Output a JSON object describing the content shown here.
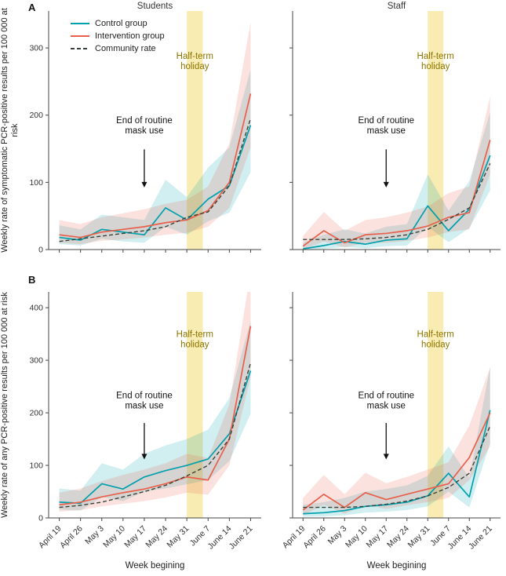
{
  "chart_data": {
    "type": "line",
    "categories": [
      "April 19",
      "April 26",
      "May 3",
      "May 10",
      "May 17",
      "May 24",
      "May 31",
      "June 7",
      "June 14",
      "June 21"
    ],
    "xlabel": "Week begining",
    "legend": [
      "Control group",
      "Intervention group",
      "Community rate"
    ],
    "legend_position": "top-left",
    "colors": {
      "control": "#00a0ad",
      "intervention": "#e8604c",
      "community": "#39423a",
      "band_opacity": 0.18,
      "holiday_fill": "#f7e9a6",
      "holiday_text": "#8a7400",
      "axis": "#444444"
    },
    "holiday_band": {
      "lines": [
        "Half-term",
        "holiday"
      ],
      "x_from": 6.0,
      "x_to": 6.75
    },
    "mask_annotation": {
      "lines": [
        "End of routine",
        "mask use"
      ],
      "x_index": 4
    },
    "panels": [
      {
        "id": "a-students",
        "letter": "A",
        "title": "Students",
        "ylabel": "Weekly rate of symptomatic PCR-positive results per 100 000 at risk",
        "ylim": [
          0,
          355
        ],
        "yticks": [
          0,
          100,
          200,
          300
        ],
        "series": [
          {
            "key": "control",
            "name": "Control group",
            "values": [
              18,
              14,
              30,
              26,
              22,
              62,
              44,
              75,
              95,
              185
            ],
            "lower": [
              8,
              6,
              16,
              12,
              10,
              34,
              22,
              42,
              55,
              115
            ],
            "upper": [
              36,
              30,
              52,
              48,
              44,
              104,
              78,
              122,
              152,
              268
            ]
          },
          {
            "key": "intervention",
            "name": "Intervention group",
            "values": [
              22,
              18,
              26,
              30,
              34,
              40,
              44,
              58,
              100,
              232
            ],
            "lower": [
              10,
              8,
              13,
              15,
              18,
              22,
              25,
              34,
              62,
              152
            ],
            "upper": [
              44,
              38,
              48,
              54,
              60,
              68,
              74,
              94,
              158,
              338
            ]
          },
          {
            "key": "community",
            "name": "Community rate",
            "dashed": true,
            "values": [
              12,
              16,
              20,
              24,
              28,
              34,
              48,
              56,
              95,
              195
            ]
          }
        ]
      },
      {
        "id": "a-staff",
        "title": "Staff",
        "ylim": [
          0,
          355
        ],
        "yticks": [
          0,
          100,
          200,
          300
        ],
        "series": [
          {
            "key": "control",
            "name": "Control group",
            "values": [
              1,
              6,
              12,
              8,
              14,
              16,
              65,
              28,
              60,
              140
            ],
            "lower": [
              0,
              1,
              4,
              2,
              5,
              6,
              34,
              11,
              32,
              88
            ],
            "upper": [
              10,
              22,
              30,
              24,
              34,
              38,
              112,
              58,
              102,
              204
            ]
          },
          {
            "key": "intervention",
            "name": "Intervention group",
            "values": [
              5,
              28,
              10,
              22,
              24,
              28,
              35,
              48,
              55,
              163
            ],
            "lower": [
              0,
              12,
              3,
              10,
              10,
              13,
              18,
              26,
              30,
              112
            ],
            "upper": [
              20,
              56,
              28,
              44,
              48,
              55,
              64,
              84,
              94,
              228
            ]
          },
          {
            "key": "community",
            "name": "Community rate",
            "dashed": true,
            "values": [
              15,
              15,
              15,
              16,
              18,
              22,
              30,
              45,
              62,
              128
            ]
          }
        ]
      },
      {
        "id": "b-students",
        "letter": "B",
        "ylabel": "Weekly rate of any PCR-positive results per 100 000 at risk",
        "ylim": [
          0,
          430
        ],
        "yticks": [
          0,
          100,
          200,
          300,
          400
        ],
        "series": [
          {
            "key": "control",
            "name": "Control group",
            "values": [
              30,
              28,
              65,
              55,
              78,
              90,
              100,
              112,
              160,
              280
            ],
            "lower": [
              16,
              14,
              40,
              32,
              50,
              56,
              64,
              72,
              108,
              198
            ],
            "upper": [
              56,
              52,
              104,
              92,
              122,
              138,
              150,
              168,
              228,
              375
            ]
          },
          {
            "key": "intervention",
            "name": "Intervention group",
            "values": [
              25,
              30,
              40,
              48,
              55,
              65,
              78,
              72,
              150,
              365
            ],
            "lower": [
              12,
              15,
              22,
              27,
              32,
              39,
              48,
              44,
              100,
              268
            ],
            "upper": [
              48,
              56,
              70,
              82,
              92,
              104,
              122,
              114,
              216,
              468
            ]
          },
          {
            "key": "community",
            "name": "Community rate",
            "dashed": true,
            "values": [
              20,
              24,
              30,
              40,
              50,
              62,
              80,
              100,
              150,
              295
            ]
          }
        ]
      },
      {
        "id": "b-staff",
        "ylim": [
          0,
          430
        ],
        "yticks": [
          0,
          100,
          200,
          300,
          400
        ],
        "series": [
          {
            "key": "control",
            "name": "Control group",
            "values": [
              8,
              10,
              14,
              22,
              25,
              30,
              42,
              85,
              40,
              205
            ],
            "lower": [
              2,
              3,
              5,
              10,
              12,
              15,
              22,
              50,
              20,
              142
            ],
            "upper": [
              25,
              30,
              38,
              50,
              55,
              62,
              80,
              136,
              76,
              288
            ]
          },
          {
            "key": "intervention",
            "name": "Intervention group",
            "values": [
              15,
              45,
              20,
              48,
              35,
              45,
              55,
              65,
              115,
              200
            ],
            "lower": [
              5,
              25,
              8,
              25,
              17,
              24,
              30,
              38,
              72,
              136
            ],
            "upper": [
              38,
              82,
              45,
              86,
              66,
              78,
              92,
              106,
              176,
              286
            ]
          },
          {
            "key": "community",
            "name": "Community rate",
            "dashed": true,
            "values": [
              20,
              20,
              20,
              22,
              26,
              32,
              42,
              58,
              85,
              175
            ]
          }
        ]
      }
    ]
  }
}
